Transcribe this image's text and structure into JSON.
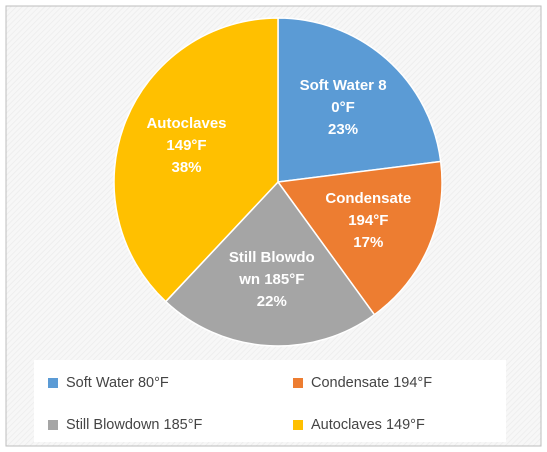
{
  "chart_data": {
    "type": "pie",
    "categories": [
      "Soft Water 80°F",
      "Condensate 194°F",
      "Still Blowdown 185°F",
      "Autoclaves 149°F"
    ],
    "values": [
      23,
      17,
      22,
      38
    ],
    "value_labels": [
      "23%",
      "17%",
      "22%",
      "38%"
    ],
    "colors": [
      "#5b9bd5",
      "#ed7d31",
      "#a5a5a5",
      "#ffc000"
    ],
    "legend": "bottom"
  }
}
